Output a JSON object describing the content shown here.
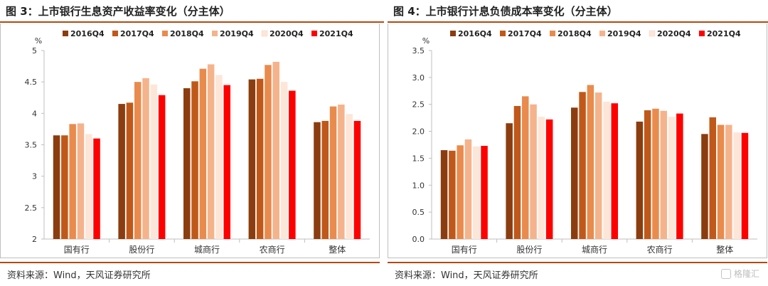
{
  "left_chart": {
    "title": "图 3：上市银行生息资产收益率变化（分主体）",
    "source": "资料来源：Wind，天风证券研究所",
    "chart_data": {
      "type": "bar",
      "ylabel": "%",
      "ylim": [
        2,
        5
      ],
      "yticks": [
        "2",
        "2.5",
        "3",
        "3.5",
        "4",
        "4.5",
        "5"
      ],
      "categories": [
        "国有行",
        "股份行",
        "城商行",
        "农商行",
        "整体"
      ],
      "series": [
        {
          "name": "2016Q4",
          "color": "#8b3d0f",
          "values": [
            3.65,
            4.15,
            4.4,
            4.54,
            3.86
          ]
        },
        {
          "name": "2017Q4",
          "color": "#c0581a",
          "values": [
            3.65,
            4.17,
            4.51,
            4.55,
            3.88
          ]
        },
        {
          "name": "2018Q4",
          "color": "#e98b4d",
          "values": [
            3.83,
            4.5,
            4.71,
            4.77,
            4.11
          ]
        },
        {
          "name": "2019Q4",
          "color": "#f5b38c",
          "values": [
            3.84,
            4.56,
            4.78,
            4.82,
            4.14
          ]
        },
        {
          "name": "2020Q4",
          "color": "#fde6d8",
          "values": [
            3.67,
            4.46,
            4.61,
            4.5,
            3.99
          ]
        },
        {
          "name": "2021Q4",
          "color": "#ff0000",
          "values": [
            3.6,
            4.29,
            4.45,
            4.36,
            3.88
          ]
        }
      ],
      "grid": false,
      "legend": "top"
    }
  },
  "right_chart": {
    "title": "图 4：上市银行计息负债成本率变化（分主体）",
    "source": "资料来源：Wind，天风证券研究所",
    "chart_data": {
      "type": "bar",
      "ylabel": "%",
      "ylim": [
        0,
        3.5
      ],
      "yticks": [
        "0.0",
        "0.5",
        "1.0",
        "1.5",
        "2.0",
        "2.5",
        "3.0",
        "3.5"
      ],
      "categories": [
        "国有行",
        "股份行",
        "城商行",
        "农商行",
        "整体"
      ],
      "series": [
        {
          "name": "2016Q4",
          "color": "#8b3d0f",
          "values": [
            1.65,
            2.15,
            2.44,
            2.18,
            1.95
          ]
        },
        {
          "name": "2017Q4",
          "color": "#c0581a",
          "values": [
            1.64,
            2.47,
            2.73,
            2.39,
            2.26
          ]
        },
        {
          "name": "2018Q4",
          "color": "#e98b4d",
          "values": [
            1.74,
            2.65,
            2.86,
            2.42,
            2.12
          ]
        },
        {
          "name": "2019Q4",
          "color": "#f5b38c",
          "values": [
            1.85,
            2.5,
            2.72,
            2.38,
            2.12
          ]
        },
        {
          "name": "2020Q4",
          "color": "#fde6d8",
          "values": [
            1.72,
            2.27,
            2.55,
            2.27,
            1.98
          ]
        },
        {
          "name": "2021Q4",
          "color": "#ff0000",
          "values": [
            1.73,
            2.22,
            2.52,
            2.33,
            1.97
          ]
        }
      ],
      "grid": false,
      "legend": "top"
    }
  },
  "watermark": "格隆汇"
}
